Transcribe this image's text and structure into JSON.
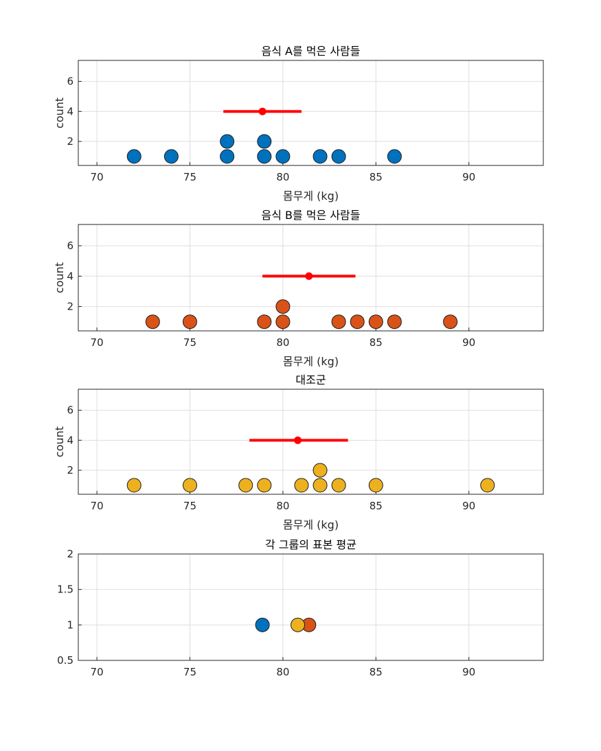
{
  "chart_data": [
    {
      "type": "scatter",
      "title": "음식 A를 먹은 사람들",
      "xlabel": "몸무게 (kg)",
      "ylabel": "count",
      "xlim": [
        69,
        94
      ],
      "ylim": [
        0.4,
        7.4
      ],
      "xticks": [
        70,
        75,
        80,
        85,
        90
      ],
      "yticks": [
        2,
        4,
        6
      ],
      "grid": true,
      "color": "#0072bd",
      "points": [
        {
          "x": 72,
          "y": 1
        },
        {
          "x": 74,
          "y": 1
        },
        {
          "x": 77,
          "y": 1
        },
        {
          "x": 77,
          "y": 2
        },
        {
          "x": 79,
          "y": 1
        },
        {
          "x": 79,
          "y": 2
        },
        {
          "x": 80,
          "y": 1
        },
        {
          "x": 82,
          "y": 1
        },
        {
          "x": 83,
          "y": 1
        },
        {
          "x": 86,
          "y": 1
        }
      ],
      "mean": {
        "x": 78.9,
        "y": 4,
        "low": 76.8,
        "high": 81.0,
        "color": "#ff0000"
      }
    },
    {
      "type": "scatter",
      "title": "음식 B를 먹은 사람들",
      "xlabel": "몸무게 (kg)",
      "ylabel": "count",
      "xlim": [
        69,
        94
      ],
      "ylim": [
        0.4,
        7.4
      ],
      "xticks": [
        70,
        75,
        80,
        85,
        90
      ],
      "yticks": [
        2,
        4,
        6
      ],
      "grid": true,
      "color": "#d95319",
      "points": [
        {
          "x": 73,
          "y": 1
        },
        {
          "x": 75,
          "y": 1
        },
        {
          "x": 79,
          "y": 1
        },
        {
          "x": 80,
          "y": 1
        },
        {
          "x": 80,
          "y": 2
        },
        {
          "x": 83,
          "y": 1
        },
        {
          "x": 84,
          "y": 1
        },
        {
          "x": 85,
          "y": 1
        },
        {
          "x": 86,
          "y": 1
        },
        {
          "x": 89,
          "y": 1
        }
      ],
      "mean": {
        "x": 81.4,
        "y": 4,
        "low": 78.9,
        "high": 83.9,
        "color": "#ff0000"
      }
    },
    {
      "type": "scatter",
      "title": "대조군",
      "xlabel": "몸무게 (kg)",
      "ylabel": "count",
      "xlim": [
        69,
        94
      ],
      "ylim": [
        0.4,
        7.4
      ],
      "xticks": [
        70,
        75,
        80,
        85,
        90
      ],
      "yticks": [
        2,
        4,
        6
      ],
      "grid": true,
      "color": "#edb120",
      "points": [
        {
          "x": 72,
          "y": 1
        },
        {
          "x": 75,
          "y": 1
        },
        {
          "x": 78,
          "y": 1
        },
        {
          "x": 79,
          "y": 1
        },
        {
          "x": 81,
          "y": 1
        },
        {
          "x": 82,
          "y": 1
        },
        {
          "x": 82,
          "y": 2
        },
        {
          "x": 83,
          "y": 1
        },
        {
          "x": 85,
          "y": 1
        },
        {
          "x": 91,
          "y": 1
        }
      ],
      "mean": {
        "x": 80.8,
        "y": 4,
        "low": 78.2,
        "high": 83.5,
        "color": "#ff0000"
      }
    },
    {
      "type": "scatter",
      "title": "각 그룹의 표본 평균",
      "xlabel": "",
      "ylabel": "",
      "xlim": [
        69,
        94
      ],
      "ylim": [
        0.5,
        2
      ],
      "xticks": [
        70,
        75,
        80,
        85,
        90
      ],
      "yticks": [
        0.5,
        1,
        1.5,
        2
      ],
      "ytick_labels": [
        "0.5",
        "1",
        "1.5",
        "2"
      ],
      "grid": true,
      "series": [
        {
          "color": "#0072bd",
          "points": [
            {
              "x": 78.9,
              "y": 1
            }
          ]
        },
        {
          "color": "#d95319",
          "points": [
            {
              "x": 81.4,
              "y": 1
            }
          ]
        },
        {
          "color": "#edb120",
          "points": [
            {
              "x": 80.8,
              "y": 1
            }
          ]
        }
      ]
    }
  ]
}
